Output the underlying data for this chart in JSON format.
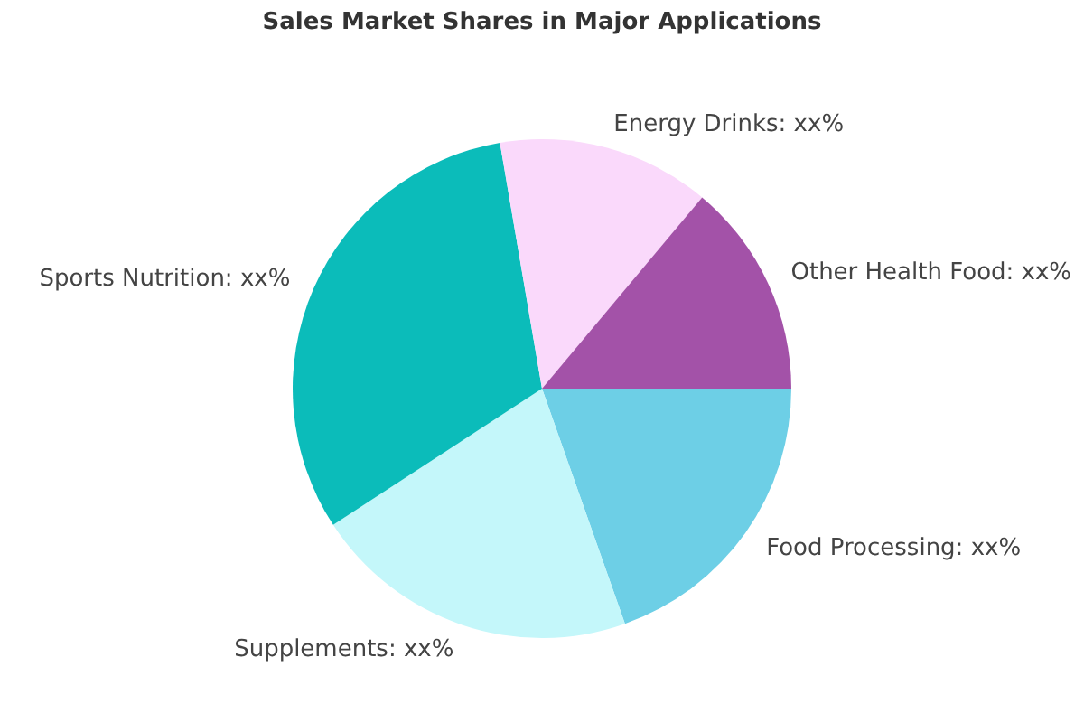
{
  "chart_data": {
    "type": "pie",
    "title": "Sales Market Shares in Major Applications",
    "categories": [
      "Food Processing",
      "Supplements",
      "Sports Nutrition",
      "Energy Drinks",
      "Other Health Food"
    ],
    "values": [
      19.6,
      21.2,
      31.5,
      13.8,
      13.9
    ],
    "value_labels": [
      "xx%",
      "xx%",
      "xx%",
      "xx%",
      "xx%"
    ],
    "colors": [
      "#6dcfe6",
      "#c4f7fa",
      "#0bbcba",
      "#fad9fb",
      "#a352a8"
    ]
  }
}
